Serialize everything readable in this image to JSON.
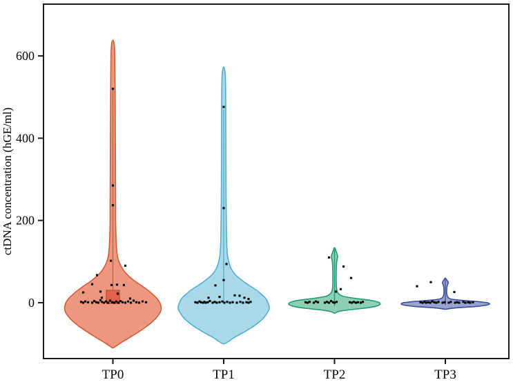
{
  "chart_data": {
    "type": "violin",
    "title": "",
    "xlabel": "",
    "ylabel": "ctDNA concentration (hGE/ml)",
    "categories": [
      "TP0",
      "TP1",
      "TP2",
      "TP3"
    ],
    "yticks": [
      0,
      200,
      400,
      600
    ],
    "ylim": [
      -135,
      726
    ],
    "grid": false,
    "legend": "none",
    "point_color": "#0b0b0b",
    "axis_color": "#1a1a1a",
    "series": [
      {
        "name": "TP0",
        "fill": "#ED9780",
        "stroke": "#D45A38",
        "violin_max": 638,
        "violin_min": -110,
        "profile": [
          [
            638,
            0
          ],
          [
            615,
            2.5
          ],
          [
            520,
            3.2
          ],
          [
            400,
            3.6
          ],
          [
            300,
            3.8
          ],
          [
            237,
            4
          ],
          [
            200,
            4
          ],
          [
            160,
            4.5
          ],
          [
            130,
            5.5
          ],
          [
            110,
            7
          ],
          [
            95,
            10
          ],
          [
            80,
            15
          ],
          [
            68,
            21
          ],
          [
            55,
            30
          ],
          [
            42,
            41
          ],
          [
            30,
            51
          ],
          [
            20,
            58
          ],
          [
            10,
            64
          ],
          [
            0,
            68
          ],
          [
            -12,
            70
          ],
          [
            -25,
            68
          ],
          [
            -40,
            61
          ],
          [
            -55,
            51
          ],
          [
            -70,
            38
          ],
          [
            -85,
            24
          ],
          [
            -97,
            12
          ],
          [
            -106,
            4
          ],
          [
            -110,
            0
          ]
        ],
        "stem": [
          520,
          0
        ],
        "box": {
          "low": -2,
          "high": 30,
          "halfwidth": 9.5,
          "fill": "#E2634A",
          "stroke": "#BF4F36"
        },
        "points": [
          [
            0,
            520
          ],
          [
            0,
            285
          ],
          [
            0,
            237
          ],
          [
            -3,
            102
          ],
          [
            18,
            90
          ],
          [
            -23,
            67
          ],
          [
            -30,
            45
          ],
          [
            -2,
            43
          ],
          [
            6,
            44
          ],
          [
            16,
            43
          ],
          [
            -43,
            25
          ],
          [
            -18,
            27
          ],
          [
            7,
            22
          ],
          [
            -16,
            12
          ],
          [
            25,
            10
          ],
          [
            -46,
            2
          ],
          [
            -43,
            0
          ],
          [
            -40,
            3
          ],
          [
            -36,
            1
          ],
          [
            -30,
            0
          ],
          [
            -27,
            4
          ],
          [
            -24,
            1
          ],
          [
            -21,
            0
          ],
          [
            -18,
            6
          ],
          [
            -16,
            2
          ],
          [
            -13,
            0
          ],
          [
            -10,
            3
          ],
          [
            -7,
            0
          ],
          [
            -4,
            5
          ],
          [
            -1,
            1
          ],
          [
            2,
            0
          ],
          [
            5,
            3
          ],
          [
            8,
            0
          ],
          [
            11,
            4
          ],
          [
            14,
            1
          ],
          [
            18,
            0
          ],
          [
            22,
            3
          ],
          [
            26,
            0
          ],
          [
            30,
            5
          ],
          [
            34,
            1
          ],
          [
            38,
            0
          ],
          [
            43,
            3
          ],
          [
            48,
            1
          ]
        ]
      },
      {
        "name": "TP1",
        "fill": "#A9D8E8",
        "stroke": "#4FB0D1",
        "violin_max": 573,
        "violin_min": -100,
        "profile": [
          [
            573,
            0
          ],
          [
            550,
            2.4
          ],
          [
            476,
            3
          ],
          [
            380,
            3.2
          ],
          [
            280,
            3.4
          ],
          [
            230,
            3.6
          ],
          [
            180,
            4
          ],
          [
            140,
            4.5
          ],
          [
            115,
            5.5
          ],
          [
            98,
            7.5
          ],
          [
            82,
            11
          ],
          [
            68,
            17
          ],
          [
            55,
            26
          ],
          [
            42,
            37
          ],
          [
            30,
            48
          ],
          [
            20,
            55
          ],
          [
            10,
            61
          ],
          [
            0,
            64
          ],
          [
            -12,
            66
          ],
          [
            -25,
            63
          ],
          [
            -40,
            56
          ],
          [
            -55,
            45
          ],
          [
            -70,
            31
          ],
          [
            -84,
            16
          ],
          [
            -95,
            6
          ],
          [
            -100,
            0
          ]
        ],
        "stem": [
          470,
          -2
        ],
        "box": null,
        "points": [
          [
            0,
            476
          ],
          [
            0,
            230
          ],
          [
            4,
            94
          ],
          [
            0,
            55
          ],
          [
            -12,
            42
          ],
          [
            -22,
            12
          ],
          [
            -6,
            14
          ],
          [
            16,
            18
          ],
          [
            23,
            17
          ],
          [
            30,
            12
          ],
          [
            36,
            9
          ],
          [
            -41,
            1
          ],
          [
            -38,
            0
          ],
          [
            -35,
            3
          ],
          [
            -33,
            1
          ],
          [
            -30,
            0
          ],
          [
            -28,
            2
          ],
          [
            -26,
            0
          ],
          [
            -23,
            1
          ],
          [
            -20,
            4
          ],
          [
            -16,
            0
          ],
          [
            -13,
            2
          ],
          [
            -10,
            0
          ],
          [
            -6,
            1
          ],
          [
            -2,
            3
          ],
          [
            1,
            0
          ],
          [
            5,
            2
          ],
          [
            9,
            0
          ],
          [
            13,
            1
          ],
          [
            19,
            0
          ],
          [
            24,
            2
          ],
          [
            28,
            0
          ],
          [
            33,
            1
          ],
          [
            36,
            0
          ],
          [
            39,
            2
          ]
        ]
      },
      {
        "name": "TP2",
        "fill": "#8FD0B4",
        "stroke": "#23997A",
        "violin_max": 134,
        "violin_min": -26,
        "profile": [
          [
            134,
            0
          ],
          [
            126,
            2
          ],
          [
            113,
            4.5
          ],
          [
            100,
            3.2
          ],
          [
            85,
            2.6
          ],
          [
            70,
            2.4
          ],
          [
            55,
            2.4
          ],
          [
            42,
            2.6
          ],
          [
            32,
            3.2
          ],
          [
            25,
            4.5
          ],
          [
            19,
            8
          ],
          [
            15,
            14
          ],
          [
            11,
            28
          ],
          [
            8,
            42
          ],
          [
            5,
            55
          ],
          [
            2,
            62
          ],
          [
            0,
            65
          ],
          [
            -4,
            66
          ],
          [
            -8,
            61
          ],
          [
            -12,
            49
          ],
          [
            -15,
            34
          ],
          [
            -18,
            18
          ],
          [
            -21,
            7
          ],
          [
            -24,
            2
          ],
          [
            -26,
            0
          ]
        ],
        "stem": [
          130,
          -8
        ],
        "box": null,
        "points": [
          [
            -8,
            110
          ],
          [
            13,
            88
          ],
          [
            24,
            60
          ],
          [
            9,
            33
          ],
          [
            2,
            27
          ],
          [
            -42,
            1
          ],
          [
            -39,
            0
          ],
          [
            -36,
            2
          ],
          [
            -30,
            0
          ],
          [
            -27,
            3
          ],
          [
            -24,
            1
          ],
          [
            -14,
            0
          ],
          [
            -11,
            2
          ],
          [
            -8,
            0
          ],
          [
            -5,
            4
          ],
          [
            -2,
            1
          ],
          [
            0,
            0
          ],
          [
            3,
            2
          ],
          [
            22,
            1
          ],
          [
            25,
            0
          ],
          [
            28,
            2
          ],
          [
            31,
            0
          ],
          [
            34,
            1
          ],
          [
            38,
            0
          ],
          [
            41,
            2
          ]
        ]
      },
      {
        "name": "TP3",
        "fill": "#98A3CE",
        "stroke": "#3D4D99",
        "violin_max": 60,
        "violin_min": -16,
        "profile": [
          [
            60,
            0
          ],
          [
            56,
            1.8
          ],
          [
            49,
            4.2
          ],
          [
            43,
            2.8
          ],
          [
            36,
            2.2
          ],
          [
            30,
            2
          ],
          [
            24,
            2
          ],
          [
            19,
            2.4
          ],
          [
            15,
            3.2
          ],
          [
            12,
            4.5
          ],
          [
            9,
            8
          ],
          [
            7,
            16
          ],
          [
            5,
            30
          ],
          [
            3,
            45
          ],
          [
            1,
            56
          ],
          [
            0,
            61
          ],
          [
            -3,
            64
          ],
          [
            -6,
            59
          ],
          [
            -9,
            45
          ],
          [
            -11,
            28
          ],
          [
            -13,
            12
          ],
          [
            -15,
            4
          ],
          [
            -16,
            0
          ]
        ],
        "stem": [
          57,
          -6
        ],
        "box": null,
        "points": [
          [
            -41,
            40
          ],
          [
            -21,
            50
          ],
          [
            13,
            26
          ],
          [
            -36,
            1
          ],
          [
            -33,
            0
          ],
          [
            -30,
            2
          ],
          [
            -28,
            0
          ],
          [
            -25,
            1
          ],
          [
            -22,
            0
          ],
          [
            -19,
            3
          ],
          [
            -16,
            1
          ],
          [
            -13,
            0
          ],
          [
            -10,
            2
          ],
          [
            -4,
            0
          ],
          [
            -1,
            1
          ],
          [
            5,
            0
          ],
          [
            8,
            2
          ],
          [
            14,
            0
          ],
          [
            17,
            1
          ],
          [
            20,
            0
          ],
          [
            26,
            2
          ],
          [
            29,
            0
          ],
          [
            33,
            1
          ],
          [
            36,
            0
          ],
          [
            40,
            1
          ]
        ]
      }
    ]
  }
}
